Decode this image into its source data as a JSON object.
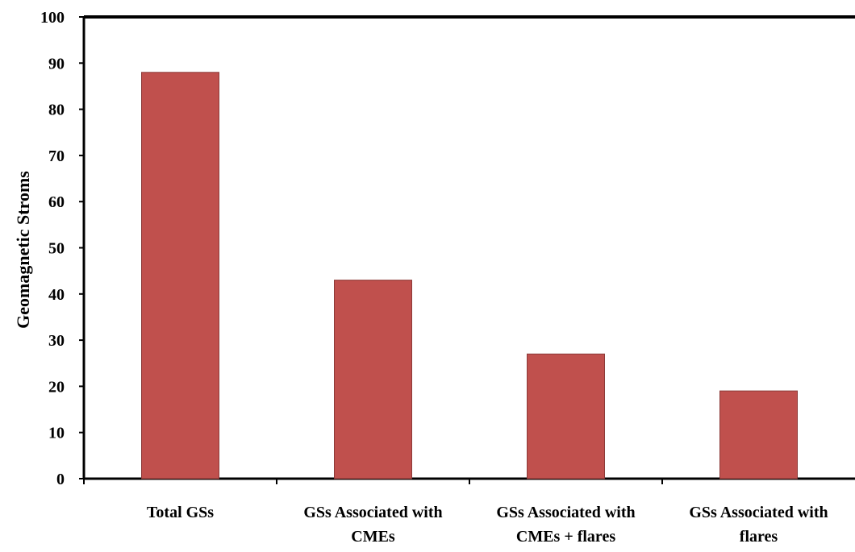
{
  "chart_data": {
    "type": "bar",
    "title": "",
    "xlabel": "",
    "ylabel": "Geomagnetic Stroms",
    "categories": [
      [
        "Total GSs"
      ],
      [
        "GSs Associated with",
        "CMEs"
      ],
      [
        "GSs Associated with",
        "CMEs + flares"
      ],
      [
        "GSs Associated with",
        "flares"
      ]
    ],
    "values": [
      88,
      43,
      27,
      19
    ],
    "ylim": [
      0,
      100
    ],
    "yticks": [
      "0",
      "10",
      "20",
      "30",
      "40",
      "50",
      "60",
      "70",
      "80",
      "90",
      "100"
    ],
    "grid": false,
    "legend": "none",
    "colors": {
      "bar": "#C0504D",
      "bar_edge": "#8C3A38",
      "axis": "#000000"
    }
  }
}
